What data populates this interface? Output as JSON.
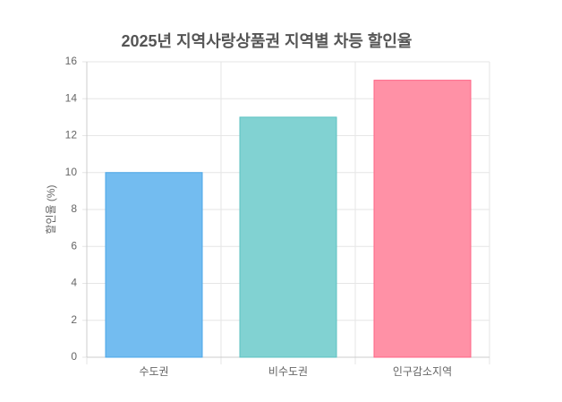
{
  "chart_data": {
    "type": "bar",
    "title": "2025년 지역사랑상품권 지역별 차등 할인율",
    "y_label": "할인율 (%)",
    "categories": [
      "수도권",
      "비수도권",
      "인구감소지역"
    ],
    "values": [
      10,
      13,
      15
    ],
    "colors": [
      "#73bcf0",
      "#81d2d2",
      "#ff91a6"
    ],
    "border_colors": [
      "#4aa6e8",
      "#5cc2c2",
      "#ff6384"
    ],
    "ylim": [
      0,
      16
    ],
    "yticks": [
      0,
      2,
      4,
      6,
      8,
      10,
      12,
      14,
      16
    ],
    "grid": true
  }
}
